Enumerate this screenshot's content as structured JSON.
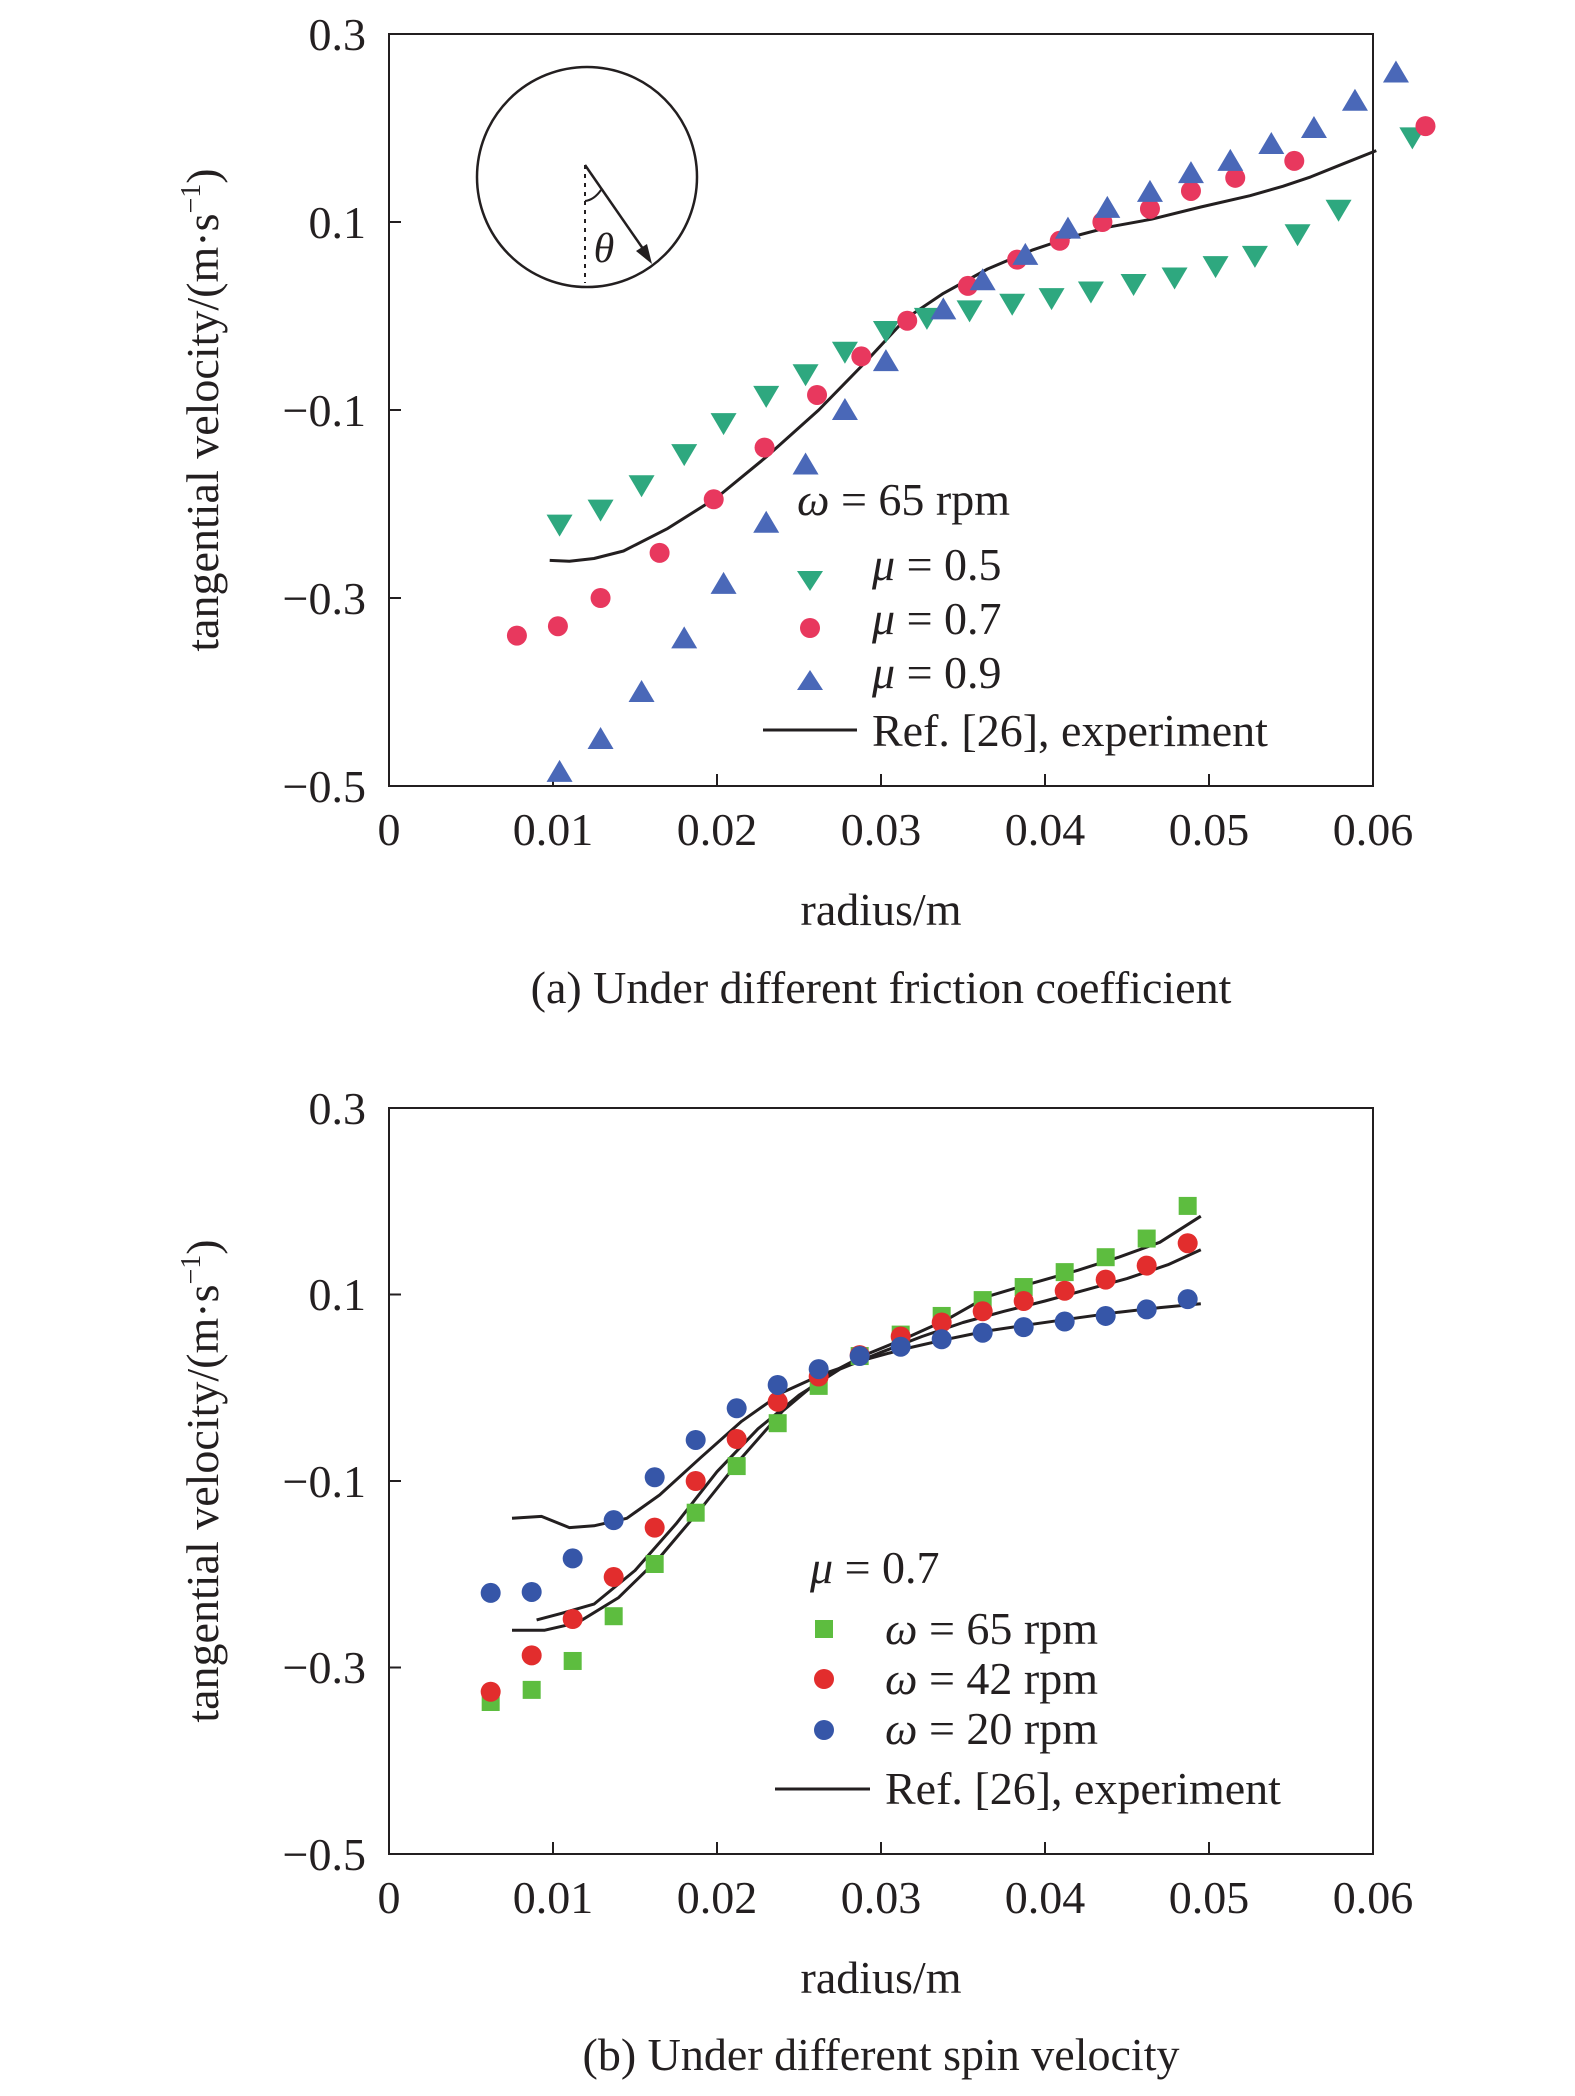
{
  "chart_data": [
    {
      "type": "scatter",
      "caption": "(a) Under different friction coefficient",
      "xlabel": "radius/m",
      "ylabel_main": "tangential velocity/(m·s",
      "ylabel_exp": "−1",
      "ylabel_close": ")",
      "xlim": [
        0,
        0.06
      ],
      "ylim": [
        -0.5,
        0.3
      ],
      "xticks": [
        0,
        0.01,
        0.02,
        0.03,
        0.04,
        0.05,
        0.06
      ],
      "xtick_labels": [
        "0",
        "0.01",
        "0.02",
        "0.03",
        "0.04",
        "0.05",
        "0.06"
      ],
      "yticks": [
        0.3,
        0.1,
        -0.1,
        -0.3,
        -0.5
      ],
      "ytick_labels": [
        "0.3",
        "0.1",
        "−0.1",
        "−0.3",
        "−0.5"
      ],
      "inset_label": "θ",
      "legend": {
        "title_sym": "ω",
        "title_rest": " = 65 rpm",
        "placement": "bottom-right"
      },
      "series": [
        {
          "sym": "μ",
          "label_rest": " = 0.5",
          "marker": "triangle-down",
          "color": "#2ea87f",
          "points": [
            [
              0.0104,
              -0.222
            ],
            [
              0.0129,
              -0.206
            ],
            [
              0.0154,
              -0.18
            ],
            [
              0.018,
              -0.147
            ],
            [
              0.0204,
              -0.114
            ],
            [
              0.023,
              -0.085
            ],
            [
              0.0254,
              -0.062
            ],
            [
              0.0278,
              -0.038
            ],
            [
              0.0303,
              -0.016
            ],
            [
              0.0328,
              -0.002
            ],
            [
              0.0354,
              0.006
            ],
            [
              0.038,
              0.013
            ],
            [
              0.0404,
              0.019
            ],
            [
              0.0428,
              0.026
            ],
            [
              0.0454,
              0.034
            ],
            [
              0.0479,
              0.041
            ],
            [
              0.0504,
              0.053
            ],
            [
              0.0528,
              0.064
            ],
            [
              0.0554,
              0.087
            ],
            [
              0.0579,
              0.113
            ],
            [
              0.0624,
              0.19
            ]
          ]
        },
        {
          "sym": "μ",
          "label_rest": " = 0.7",
          "marker": "circle",
          "color": "#e8385e",
          "points": [
            [
              0.0078,
              -0.34
            ],
            [
              0.0103,
              -0.33
            ],
            [
              0.0129,
              -0.3
            ],
            [
              0.0165,
              -0.252
            ],
            [
              0.0198,
              -0.195
            ],
            [
              0.0229,
              -0.14
            ],
            [
              0.0261,
              -0.084
            ],
            [
              0.0288,
              -0.043
            ],
            [
              0.0316,
              -0.005
            ],
            [
              0.0353,
              0.032
            ],
            [
              0.0383,
              0.06
            ],
            [
              0.0409,
              0.08
            ],
            [
              0.0435,
              0.1
            ],
            [
              0.0464,
              0.114
            ],
            [
              0.0489,
              0.133
            ],
            [
              0.0516,
              0.147
            ],
            [
              0.0552,
              0.165
            ],
            [
              0.0632,
              0.202
            ]
          ]
        },
        {
          "sym": "μ",
          "label_rest": " = 0.9",
          "marker": "triangle-up",
          "color": "#4a68b8",
          "points": [
            [
              0.0104,
              -0.485
            ],
            [
              0.0129,
              -0.45
            ],
            [
              0.0154,
              -0.4
            ],
            [
              0.018,
              -0.343
            ],
            [
              0.0204,
              -0.285
            ],
            [
              0.023,
              -0.22
            ],
            [
              0.0254,
              -0.158
            ],
            [
              0.0278,
              -0.1
            ],
            [
              0.0303,
              -0.048
            ],
            [
              0.0338,
              0.007
            ],
            [
              0.0362,
              0.038
            ],
            [
              0.0388,
              0.065
            ],
            [
              0.0414,
              0.093
            ],
            [
              0.0438,
              0.115
            ],
            [
              0.0464,
              0.132
            ],
            [
              0.0489,
              0.152
            ],
            [
              0.0513,
              0.165
            ],
            [
              0.0538,
              0.183
            ],
            [
              0.0564,
              0.2
            ],
            [
              0.0589,
              0.229
            ],
            [
              0.0614,
              0.259
            ]
          ]
        }
      ],
      "reference": {
        "label": "Ref. [26], experiment",
        "points": [
          [
            0.0098,
            -0.26
          ],
          [
            0.011,
            -0.261
          ],
          [
            0.0125,
            -0.258
          ],
          [
            0.0143,
            -0.25
          ],
          [
            0.017,
            -0.226
          ],
          [
            0.02,
            -0.193
          ],
          [
            0.023,
            -0.15
          ],
          [
            0.0262,
            -0.1
          ],
          [
            0.029,
            -0.05
          ],
          [
            0.0315,
            -0.003
          ],
          [
            0.0338,
            0.024
          ],
          [
            0.0365,
            0.05
          ],
          [
            0.0392,
            0.07
          ],
          [
            0.0416,
            0.084
          ],
          [
            0.044,
            0.095
          ],
          [
            0.0465,
            0.103
          ],
          [
            0.0495,
            0.116
          ],
          [
            0.0525,
            0.128
          ],
          [
            0.0545,
            0.138
          ],
          [
            0.0562,
            0.148
          ],
          [
            0.0582,
            0.162
          ],
          [
            0.0602,
            0.176
          ]
        ]
      }
    },
    {
      "type": "scatter",
      "caption": "(b) Under different spin velocity",
      "xlabel": "radius/m",
      "ylabel_main": "tangential velocity/(m·s",
      "ylabel_exp": "−1",
      "ylabel_close": ")",
      "xlim": [
        0,
        0.06
      ],
      "ylim": [
        -0.5,
        0.3
      ],
      "xticks": [
        0,
        0.01,
        0.02,
        0.03,
        0.04,
        0.05,
        0.06
      ],
      "xtick_labels": [
        "0",
        "0.01",
        "0.02",
        "0.03",
        "0.04",
        "0.05",
        "0.06"
      ],
      "yticks": [
        0.3,
        0.1,
        -0.1,
        -0.3,
        -0.5
      ],
      "ytick_labels": [
        "0.3",
        "0.1",
        "−0.1",
        "−0.3",
        "−0.5"
      ],
      "legend": {
        "title_sym": "μ",
        "title_rest": " = 0.7",
        "placement": "bottom-right"
      },
      "series": [
        {
          "sym": "ω",
          "label_rest": " = 65 rpm",
          "marker": "square",
          "color": "#5dbd3f",
          "points": [
            [
              0.0062,
              -0.337
            ],
            [
              0.0087,
              -0.324
            ],
            [
              0.0112,
              -0.293
            ],
            [
              0.0137,
              -0.245
            ],
            [
              0.0162,
              -0.189
            ],
            [
              0.0187,
              -0.134
            ],
            [
              0.0212,
              -0.084
            ],
            [
              0.0237,
              -0.038
            ],
            [
              0.0262,
              0.002
            ],
            [
              0.0287,
              0.034
            ],
            [
              0.0312,
              0.057
            ],
            [
              0.0337,
              0.077
            ],
            [
              0.0362,
              0.094
            ],
            [
              0.0387,
              0.108
            ],
            [
              0.0412,
              0.124
            ],
            [
              0.0437,
              0.14
            ],
            [
              0.0462,
              0.16
            ],
            [
              0.0487,
              0.195
            ]
          ]
        },
        {
          "sym": "ω",
          "label_rest": " = 42 rpm",
          "marker": "circle",
          "color": "#e22d2d",
          "points": [
            [
              0.0062,
              -0.326
            ],
            [
              0.0087,
              -0.287
            ],
            [
              0.0112,
              -0.248
            ],
            [
              0.0137,
              -0.203
            ],
            [
              0.0162,
              -0.15
            ],
            [
              0.0187,
              -0.1
            ],
            [
              0.0212,
              -0.055
            ],
            [
              0.0237,
              -0.015
            ],
            [
              0.0262,
              0.012
            ],
            [
              0.0287,
              0.035
            ],
            [
              0.0312,
              0.055
            ],
            [
              0.0337,
              0.07
            ],
            [
              0.0362,
              0.082
            ],
            [
              0.0387,
              0.093
            ],
            [
              0.0412,
              0.104
            ],
            [
              0.0437,
              0.116
            ],
            [
              0.0462,
              0.131
            ],
            [
              0.0487,
              0.155
            ]
          ]
        },
        {
          "sym": "ω",
          "label_rest": " = 20 rpm",
          "marker": "circle",
          "color": "#3656a8",
          "points": [
            [
              0.0062,
              -0.22
            ],
            [
              0.0087,
              -0.219
            ],
            [
              0.0112,
              -0.183
            ],
            [
              0.0137,
              -0.142
            ],
            [
              0.0162,
              -0.096
            ],
            [
              0.0187,
              -0.056
            ],
            [
              0.0212,
              -0.022
            ],
            [
              0.0237,
              0.003
            ],
            [
              0.0262,
              0.02
            ],
            [
              0.0287,
              0.034
            ],
            [
              0.0312,
              0.044
            ],
            [
              0.0337,
              0.052
            ],
            [
              0.0362,
              0.059
            ],
            [
              0.0387,
              0.065
            ],
            [
              0.0412,
              0.071
            ],
            [
              0.0437,
              0.077
            ],
            [
              0.0462,
              0.084
            ],
            [
              0.0487,
              0.095
            ]
          ]
        }
      ],
      "reference_lines": {
        "label": "Ref. [26], experiment",
        "lines": [
          [
            [
              0.0075,
              -0.26
            ],
            [
              0.0095,
              -0.26
            ],
            [
              0.0115,
              -0.252
            ],
            [
              0.014,
              -0.225
            ],
            [
              0.0165,
              -0.182
            ],
            [
              0.019,
              -0.13
            ],
            [
              0.0215,
              -0.075
            ],
            [
              0.024,
              -0.025
            ],
            [
              0.0265,
              0.012
            ],
            [
              0.029,
              0.035
            ],
            [
              0.0315,
              0.053
            ],
            [
              0.034,
              0.073
            ],
            [
              0.0365,
              0.098
            ],
            [
              0.0392,
              0.112
            ],
            [
              0.042,
              0.126
            ],
            [
              0.0445,
              0.14
            ],
            [
              0.047,
              0.156
            ],
            [
              0.0495,
              0.184
            ]
          ],
          [
            [
              0.009,
              -0.249
            ],
            [
              0.0105,
              -0.242
            ],
            [
              0.0125,
              -0.232
            ],
            [
              0.015,
              -0.196
            ],
            [
              0.0175,
              -0.146
            ],
            [
              0.02,
              -0.09
            ],
            [
              0.0225,
              -0.044
            ],
            [
              0.025,
              -0.008
            ],
            [
              0.0275,
              0.02
            ],
            [
              0.03,
              0.038
            ],
            [
              0.0325,
              0.055
            ],
            [
              0.035,
              0.07
            ],
            [
              0.0375,
              0.082
            ],
            [
              0.04,
              0.093
            ],
            [
              0.0425,
              0.105
            ],
            [
              0.045,
              0.117
            ],
            [
              0.0475,
              0.132
            ],
            [
              0.0495,
              0.148
            ]
          ],
          [
            [
              0.0075,
              -0.14
            ],
            [
              0.0093,
              -0.138
            ],
            [
              0.011,
              -0.15
            ],
            [
              0.0125,
              -0.148
            ],
            [
              0.0145,
              -0.14
            ],
            [
              0.0165,
              -0.115
            ],
            [
              0.019,
              -0.075
            ],
            [
              0.0215,
              -0.036
            ],
            [
              0.024,
              -0.005
            ],
            [
              0.0265,
              0.015
            ],
            [
              0.029,
              0.03
            ],
            [
              0.0315,
              0.042
            ],
            [
              0.034,
              0.052
            ],
            [
              0.0365,
              0.061
            ],
            [
              0.0392,
              0.068
            ],
            [
              0.042,
              0.075
            ],
            [
              0.0445,
              0.081
            ],
            [
              0.047,
              0.086
            ],
            [
              0.0495,
              0.09
            ]
          ]
        ]
      }
    }
  ]
}
